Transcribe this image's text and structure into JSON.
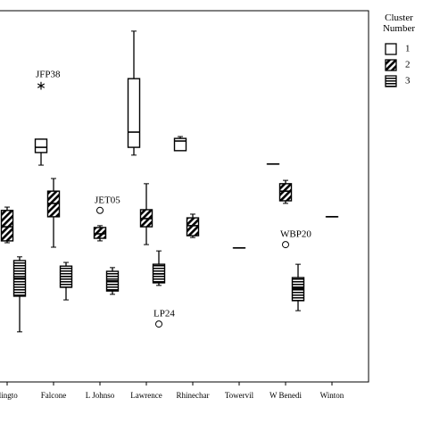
{
  "chart_data": {
    "type": "box",
    "categories": [
      "llingto",
      "Falcone",
      "L Johnso",
      "Lawrence",
      "Rhinechar",
      "Towervil",
      "W Benedi",
      "Winton"
    ],
    "legend_title": "Cluster Number",
    "ylim": [
      0,
      100
    ],
    "series": [
      {
        "name": "1",
        "pattern": "open",
        "boxes": [
          {
            "category": 1,
            "stats": [
              58.4,
              61.8,
              63.2,
              65.4,
              65.4
            ]
          },
          {
            "category": 3,
            "stats": [
              61.1,
              63.2,
              67.3,
              81.7,
              94.5
            ]
          },
          {
            "category": 4,
            "stats": [
              62.3,
              62.3,
              64.9,
              65.6,
              66.1
            ]
          },
          {
            "category": 6,
            "stats": [
              58.7,
              58.7,
              58.7,
              58.7,
              58.7
            ]
          }
        ]
      },
      {
        "name": "2",
        "pattern": "diagonal",
        "boxes": [
          {
            "category": 0,
            "stats": [
              37.5,
              38.0,
              41.8,
              46.2,
              47.1
            ]
          },
          {
            "category": 1,
            "stats": [
              36.3,
              44.5,
              48.1,
              51.4,
              54.8
            ]
          },
          {
            "category": 2,
            "stats": [
              38.0,
              38.7,
              39.9,
              41.6,
              42.1
            ]
          },
          {
            "category": 3,
            "stats": [
              37.0,
              41.8,
              44.0,
              46.4,
              53.4
            ]
          },
          {
            "category": 4,
            "stats": [
              38.9,
              39.4,
              42.1,
              44.2,
              45.2
            ]
          },
          {
            "category": 5,
            "stats": [
              36.1,
              36.1,
              36.1,
              36.1,
              36.1
            ]
          },
          {
            "category": 6,
            "stats": [
              48.1,
              48.8,
              51.4,
              53.4,
              54.3
            ]
          },
          {
            "category": 7,
            "stats": [
              44.5,
              44.5,
              44.5,
              44.5,
              44.5
            ]
          }
        ]
      },
      {
        "name": "3",
        "pattern": "horizontal",
        "boxes": [
          {
            "category": 0,
            "stats": [
              13.5,
              23.1,
              27.9,
              32.7,
              33.7
            ]
          },
          {
            "category": 1,
            "stats": [
              22.1,
              25.5,
              28.4,
              31.2,
              32.2
            ]
          },
          {
            "category": 2,
            "stats": [
              23.6,
              24.5,
              27.2,
              29.8,
              30.8
            ]
          },
          {
            "category": 3,
            "stats": [
              26.0,
              26.7,
              29.1,
              31.7,
              35.3
            ]
          },
          {
            "category": 6,
            "stats": [
              19.2,
              21.9,
              25.2,
              28.1,
              31.7
            ]
          }
        ]
      }
    ],
    "outliers": [
      {
        "category": 1,
        "series": 0,
        "value": 80.0,
        "marker": "star",
        "label": "JFP38"
      },
      {
        "category": 2,
        "series": 1,
        "value": 46.2,
        "marker": "circle",
        "label": "JET05"
      },
      {
        "category": 3,
        "series": 2,
        "value": 15.6,
        "marker": "circle",
        "label": "LP24"
      },
      {
        "category": 6,
        "series": 1,
        "value": 37.0,
        "marker": "circle",
        "label": "WBP20"
      }
    ]
  }
}
